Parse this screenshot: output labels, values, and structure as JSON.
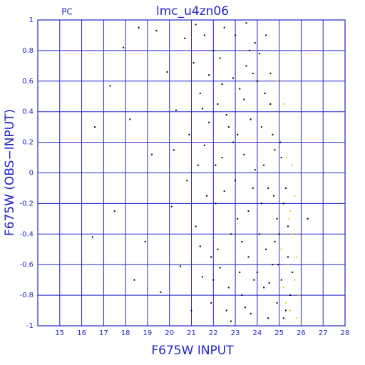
{
  "chart_data": {
    "type": "scatter",
    "title": "lmc_u4zn06",
    "subtitle": "PC",
    "x_label": "F675W INPUT",
    "y_label": "F675W (OBS−INPUT)",
    "xlim": [
      14,
      28
    ],
    "xticks": [
      15,
      16,
      17,
      18,
      19,
      20,
      21,
      22,
      23,
      24,
      25,
      26,
      27,
      28
    ],
    "ylim": [
      -1,
      1
    ],
    "yticks": [
      -1,
      -0.8,
      -0.6,
      -0.4,
      -0.2,
      0,
      0.2,
      0.4,
      0.6,
      0.8,
      1
    ],
    "grid": true,
    "grid_color": "#2222cc",
    "series": [
      {
        "color": "#000000",
        "x": [
          17.3,
          17.9,
          18.2,
          18.6,
          18.9,
          19.2,
          19.6,
          19.9,
          20.1,
          20.3,
          20.5,
          20.7,
          20.8,
          20.9,
          21.0,
          17.5,
          16.6,
          19.4,
          20.2,
          18.4,
          21.1,
          21.2,
          21.3,
          21.4,
          21.5,
          21.6,
          21.7,
          21.8,
          21.9,
          21.4,
          21.6,
          21.8,
          21.2,
          21.9,
          21.5,
          22.0,
          22.1,
          22.2,
          22.3,
          22.4,
          22.5,
          22.6,
          22.7,
          22.8,
          22.9,
          22.1,
          22.3,
          22.5,
          22.7,
          22.9,
          22.2,
          22.4,
          22.6,
          22.8,
          22.0,
          23.0,
          23.1,
          23.2,
          23.3,
          23.4,
          23.5,
          23.6,
          23.7,
          23.8,
          23.9,
          23.1,
          23.3,
          23.5,
          23.7,
          23.9,
          23.2,
          23.4,
          23.6,
          23.8,
          23.0,
          23.45,
          23.65,
          23.85,
          24.0,
          24.1,
          24.2,
          24.3,
          24.4,
          24.5,
          24.6,
          24.7,
          24.8,
          24.9,
          24.1,
          24.3,
          24.5,
          24.7,
          24.9,
          24.2,
          24.4,
          24.6,
          24.8,
          24.0,
          24.35,
          24.55,
          24.75,
          24.95,
          25.0,
          25.1,
          25.2,
          25.3,
          25.4,
          25.5,
          25.1,
          25.2,
          25.4,
          25.6,
          25.05,
          25.3,
          26.3,
          16.5
        ],
        "y": [
          0.57,
          0.82,
          0.35,
          0.95,
          -0.45,
          0.12,
          -0.78,
          0.66,
          -0.22,
          0.41,
          -0.61,
          0.88,
          -0.05,
          0.25,
          -0.9,
          -0.25,
          0.3,
          0.93,
          0.15,
          -0.7,
          0.72,
          -0.35,
          0.05,
          0.52,
          -0.68,
          0.9,
          -0.15,
          0.33,
          -0.85,
          -0.48,
          0.18,
          0.64,
          0.97,
          -0.55,
          0.42,
          0.8,
          -0.2,
          0.45,
          -0.62,
          0.1,
          0.95,
          -0.9,
          0.3,
          -0.4,
          0.62,
          0.05,
          0.75,
          -0.12,
          -0.75,
          0.2,
          -0.5,
          0.58,
          0.38,
          -0.97,
          -0.7,
          0.9,
          -0.3,
          0.55,
          -0.8,
          0.12,
          0.7,
          -0.55,
          0.35,
          -0.1,
          0.85,
          0.25,
          -0.45,
          0.98,
          -0.92,
          0.02,
          -0.65,
          0.48,
          -0.25,
          0.65,
          -0.05,
          -0.88,
          0.8,
          -0.7,
          0.6,
          -0.4,
          0.3,
          -0.75,
          0.9,
          -0.1,
          0.45,
          -0.6,
          0.15,
          -0.85,
          0.78,
          0.05,
          -0.95,
          0.25,
          -0.3,
          -0.2,
          -0.5,
          0.65,
          -0.45,
          -0.65,
          0.52,
          -0.72,
          -0.15,
          -0.6,
          -0.4,
          -0.7,
          -0.2,
          -0.9,
          -0.55,
          -0.8,
          0.1,
          -0.95,
          -0.35,
          -0.65,
          0.2,
          -0.1,
          -0.3,
          -0.42
        ]
      },
      {
        "color": "#e8c800",
        "x": [
          25.1,
          25.2,
          25.4,
          25.5,
          25.6,
          25.3,
          25.7,
          25.8,
          25.5,
          25.6,
          25.35,
          25.8,
          25.9,
          25.2,
          24.9,
          25.45,
          26.0,
          25.7
        ],
        "y": [
          -0.5,
          -0.75,
          -0.6,
          -0.9,
          -0.4,
          -0.85,
          -0.7,
          -0.95,
          -0.25,
          0.05,
          0.1,
          -0.55,
          -0.8,
          0.45,
          0.6,
          -0.3,
          -0.98,
          -0.15
        ]
      }
    ]
  }
}
